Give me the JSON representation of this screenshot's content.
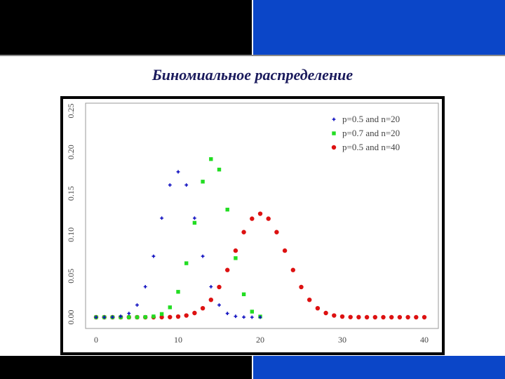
{
  "slide": {
    "title": "Биномиальное распределение",
    "colors": {
      "top_left": "#000000",
      "top_right": "#0b46c8",
      "title": "#1a1a5c"
    }
  },
  "chart_data": {
    "type": "scatter",
    "title": "",
    "xlabel": "",
    "ylabel": "",
    "xlim": [
      0,
      40
    ],
    "ylim": [
      0,
      0.25
    ],
    "x_ticks": [
      "0",
      "10",
      "20",
      "30",
      "40"
    ],
    "y_ticks": [
      "0.00",
      "0.05",
      "0.10",
      "0.15",
      "0.20",
      "0.25"
    ],
    "legend_position": "top-right",
    "grid": false,
    "series": [
      {
        "name": "p=0.5 and n=20",
        "color": "#1010c0",
        "marker": "star",
        "x": [
          0,
          1,
          2,
          3,
          4,
          5,
          6,
          7,
          8,
          9,
          10,
          11,
          12,
          13,
          14,
          15,
          16,
          17,
          18,
          19,
          20
        ],
        "y": [
          0.0,
          0.0,
          0.0002,
          0.0011,
          0.0046,
          0.0148,
          0.037,
          0.0739,
          0.1201,
          0.1602,
          0.1762,
          0.1602,
          0.1201,
          0.0739,
          0.037,
          0.0148,
          0.0046,
          0.0011,
          0.0002,
          0.0,
          0.0
        ]
      },
      {
        "name": "p=0.7 and n=20",
        "color": "#22dd22",
        "marker": "square",
        "x": [
          0,
          1,
          2,
          3,
          4,
          5,
          6,
          7,
          8,
          9,
          10,
          11,
          12,
          13,
          14,
          15,
          16,
          17,
          18,
          19,
          20
        ],
        "y": [
          0.0,
          0.0,
          0.0,
          0.0,
          0.0,
          0.0,
          0.0002,
          0.001,
          0.0039,
          0.012,
          0.0308,
          0.0654,
          0.1144,
          0.1643,
          0.1916,
          0.1789,
          0.1304,
          0.0716,
          0.0278,
          0.0068,
          0.0008
        ]
      },
      {
        "name": "p=0.5 and n=40",
        "color": "#dd1111",
        "marker": "circle",
        "x": [
          0,
          1,
          2,
          3,
          4,
          5,
          6,
          7,
          8,
          9,
          10,
          11,
          12,
          13,
          14,
          15,
          16,
          17,
          18,
          19,
          20,
          21,
          22,
          23,
          24,
          25,
          26,
          27,
          28,
          29,
          30,
          31,
          32,
          33,
          34,
          35,
          36,
          37,
          38,
          39,
          40
        ],
        "y": [
          0.0,
          0.0,
          0.0,
          0.0,
          0.0,
          0.0,
          0.0,
          0.0,
          0.0001,
          0.0002,
          0.0008,
          0.0021,
          0.0051,
          0.0109,
          0.0211,
          0.0366,
          0.0572,
          0.0807,
          0.1031,
          0.1194,
          0.1254,
          0.1194,
          0.1031,
          0.0807,
          0.0572,
          0.0366,
          0.0211,
          0.0109,
          0.0051,
          0.0021,
          0.0008,
          0.0002,
          0.0001,
          0.0,
          0.0,
          0.0,
          0.0,
          0.0,
          0.0,
          0.0,
          0.0
        ]
      }
    ]
  }
}
